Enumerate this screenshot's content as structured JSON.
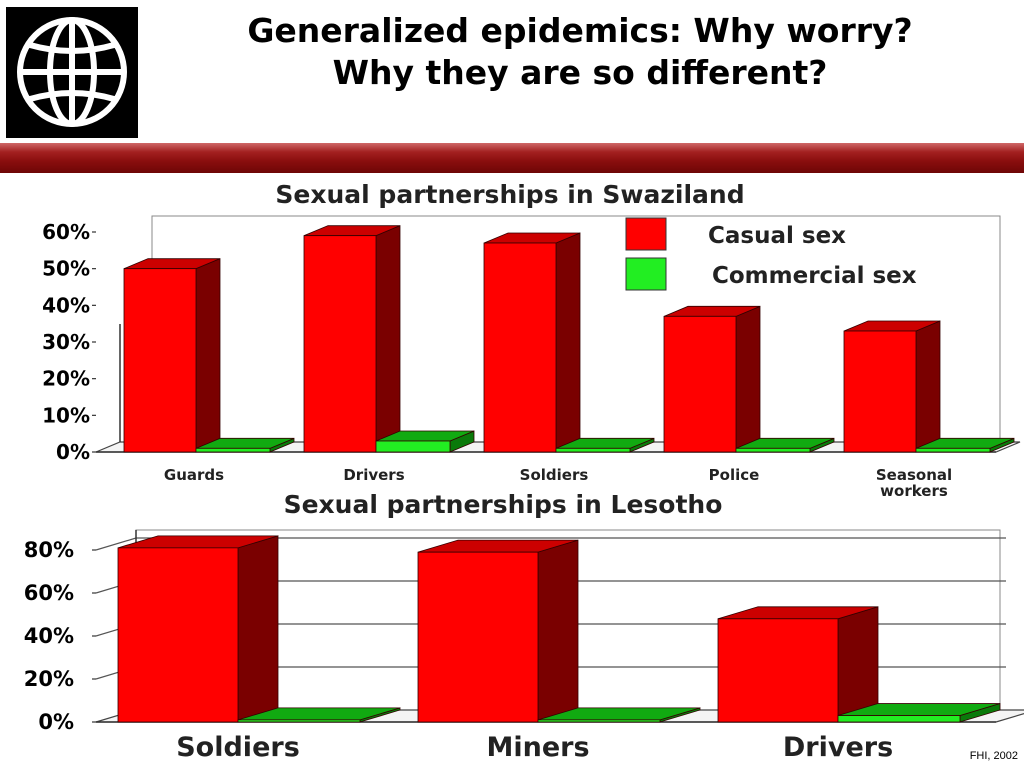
{
  "slide": {
    "title_line1": "Generalized epidemics: Why worry?",
    "title_line2": "Why they are so different?",
    "source": "FHI, 2002"
  },
  "colors": {
    "casual": "#ff0000",
    "casual_side": "#7a0000",
    "casual_top": "#cc0000",
    "commercial": "#22ee22",
    "commercial_side": "#0a7a0a",
    "commercial_top": "#11aa11"
  },
  "chart_data": [
    {
      "type": "bar",
      "title": "Sexual partnerships in Swaziland",
      "categories": [
        "Guards",
        "Drivers",
        "Soldiers",
        "Police",
        "Seasonal workers"
      ],
      "series": [
        {
          "name": "Casual sex",
          "values": [
            50,
            59,
            57,
            37,
            33
          ]
        },
        {
          "name": "Commercial sex",
          "values": [
            1,
            3,
            1,
            1,
            1
          ]
        }
      ],
      "yticks": [
        "0%",
        "10%",
        "20%",
        "30%",
        "40%",
        "50%",
        "60%"
      ],
      "ylim": [
        0,
        60
      ],
      "legend": "top-right",
      "grid": false
    },
    {
      "type": "bar",
      "title": "Sexual partnerships in Lesotho",
      "categories": [
        "Soldiers",
        "Miners",
        "Drivers"
      ],
      "series": [
        {
          "name": "Casual sex",
          "values": [
            81,
            79,
            48
          ]
        },
        {
          "name": "Commercial sex",
          "values": [
            1,
            1,
            3
          ]
        }
      ],
      "yticks": [
        "0%",
        "20%",
        "40%",
        "60%",
        "80%"
      ],
      "ylim": [
        0,
        80
      ],
      "legend": "none",
      "grid": true
    }
  ]
}
